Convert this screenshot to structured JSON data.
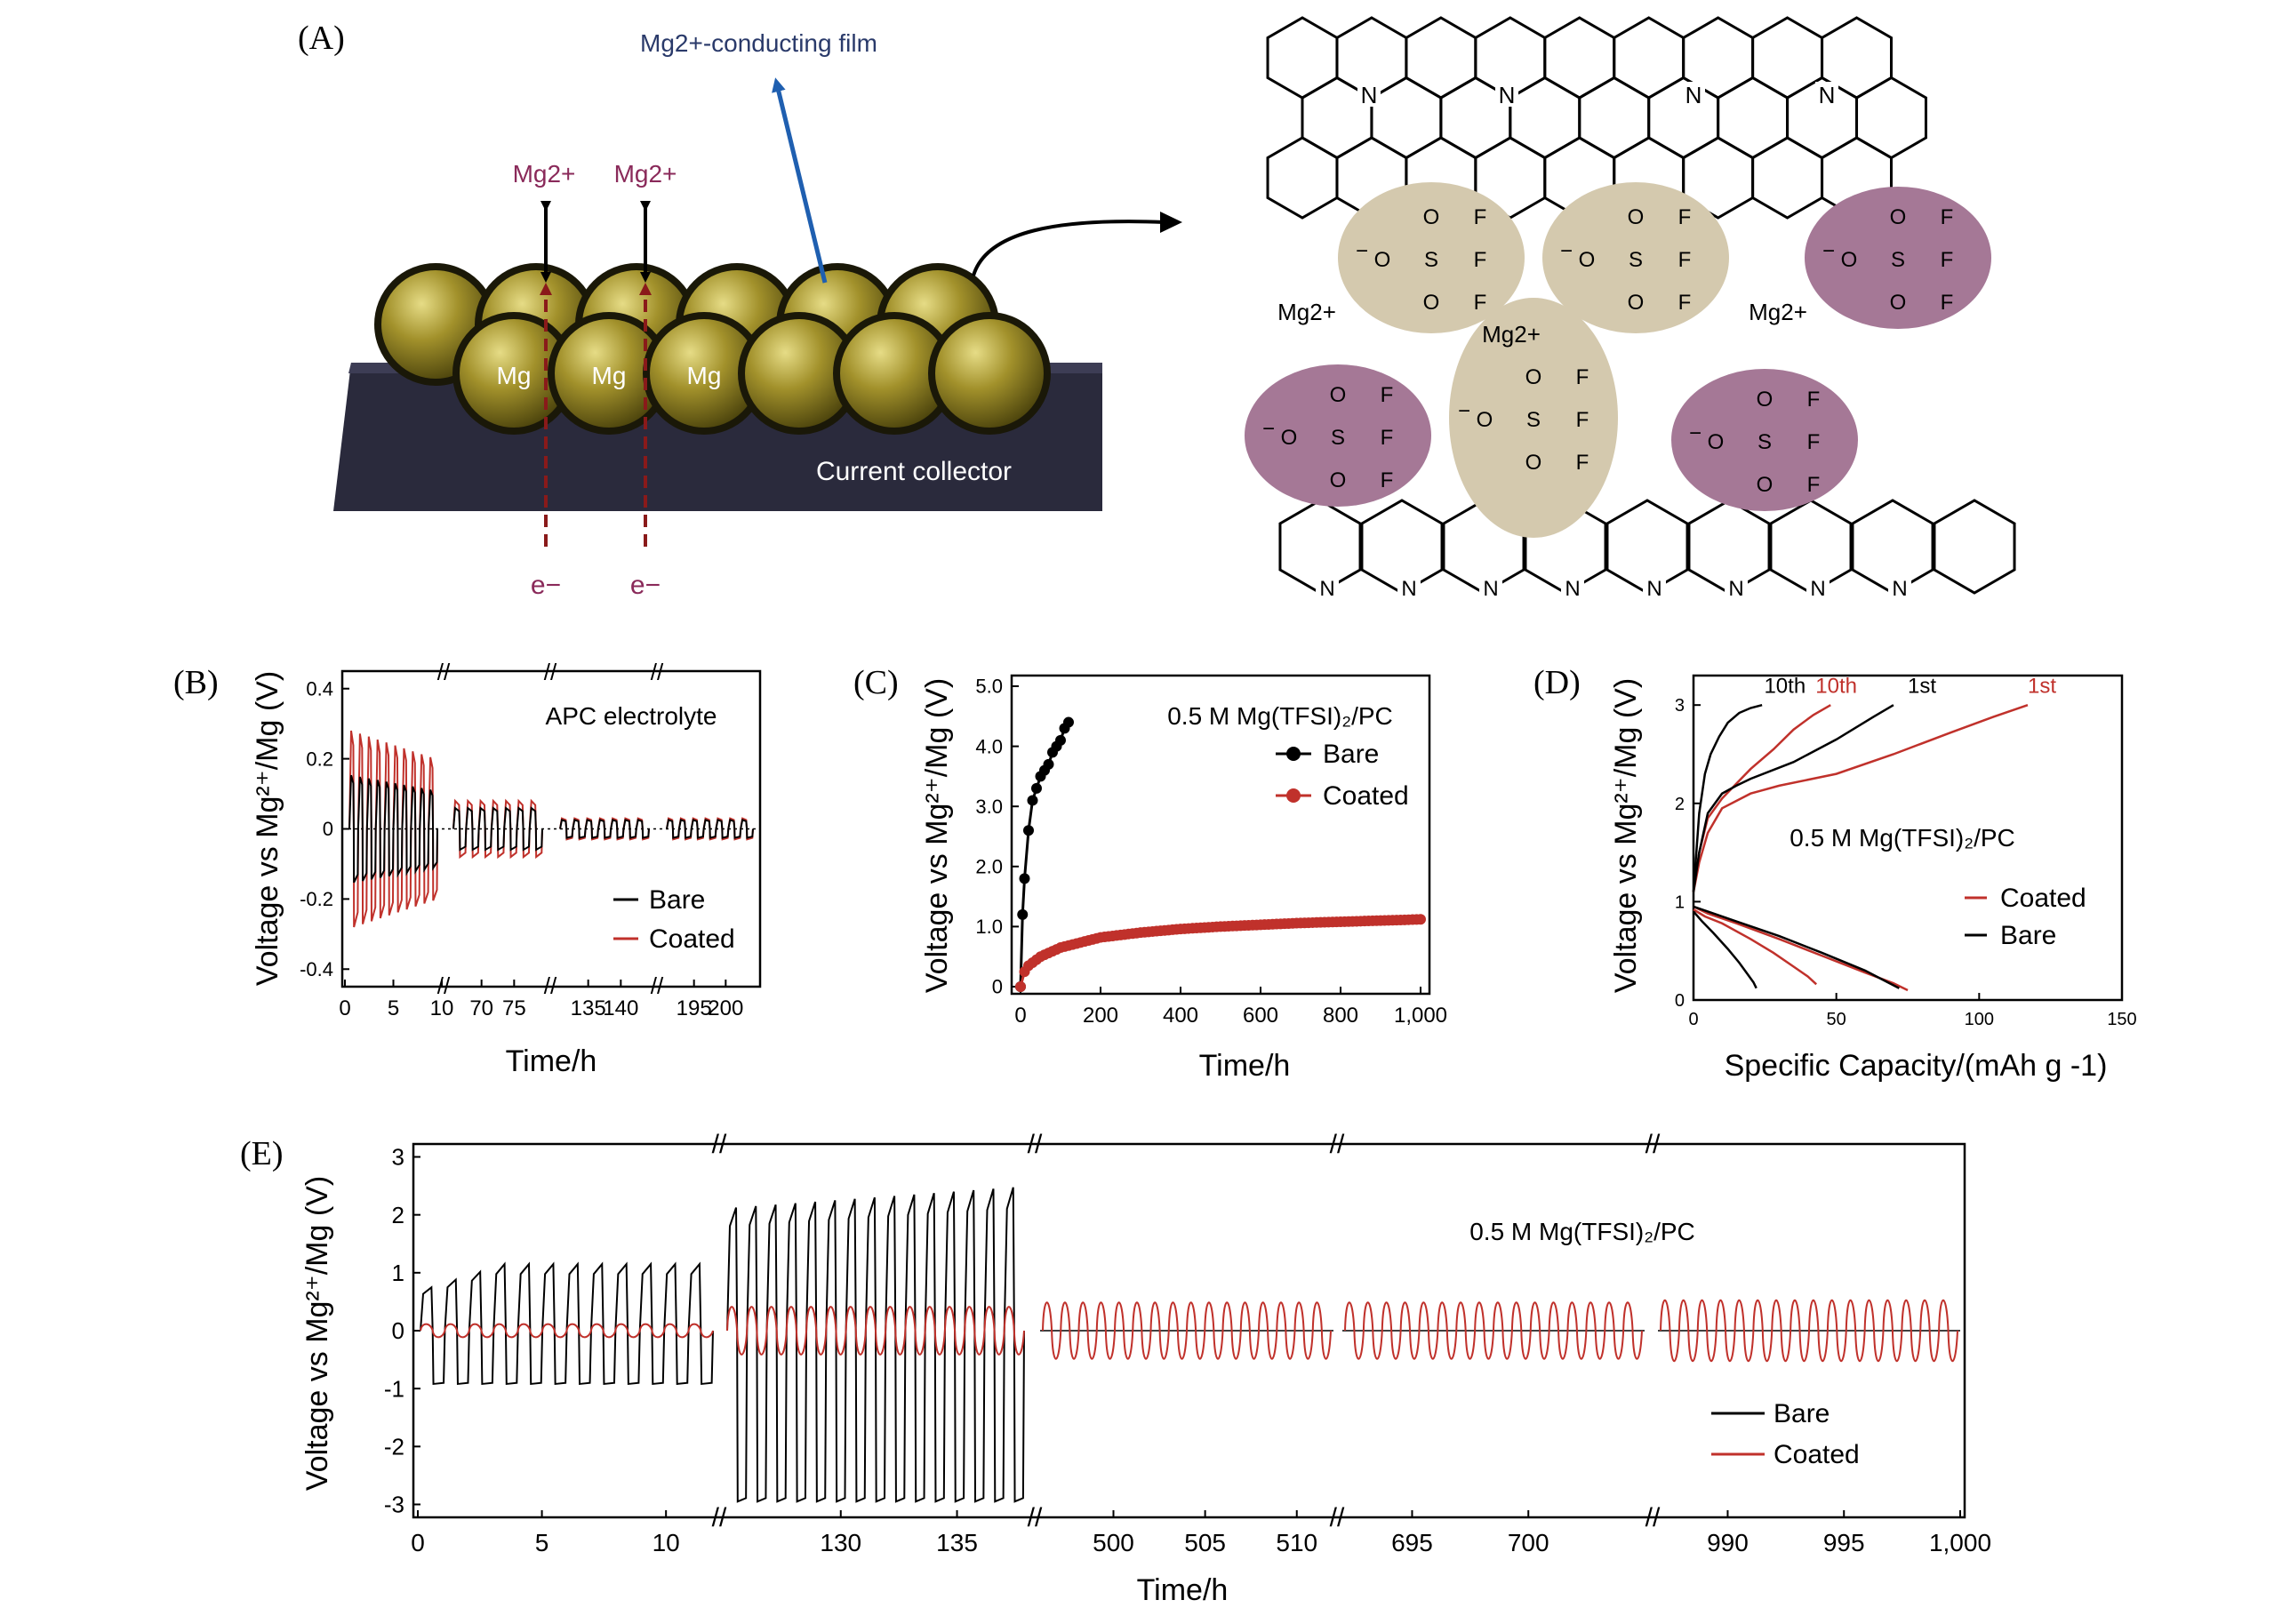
{
  "figure": {
    "panel_labels": [
      "(A)",
      "(B)",
      "(C)",
      "(D)",
      "(E)"
    ]
  },
  "schematic": {
    "film_label": "Mg2+-conducting film",
    "ion_label": "Mg2+",
    "electron_label": "e−",
    "mg_label": "Mg",
    "collector_label": "Current collector",
    "colors": {
      "sphere": "#8a7a1e",
      "collector": "#2a2a3c",
      "film_arrow": "#1f5fb0",
      "ion_text": "#8a2a5a",
      "electron_arrow": "#8a1a1a"
    }
  },
  "structure": {
    "n_label": "N",
    "mg_label": "Mg2+",
    "f_label": "F",
    "o_label": "O",
    "s_label": "S",
    "charge_label": "−",
    "colors": {
      "beige": "#d4c9ae",
      "purple": "#a57896"
    }
  },
  "colors": {
    "bare": "#000000",
    "coated": "#c0312b"
  },
  "chart_data": [
    {
      "id": "B",
      "type": "line",
      "title": "APC electrolyte",
      "xlabel": "Time/h",
      "ylabel": "Voltage vs Mg²⁺/Mg (V)",
      "ylim": [
        -0.45,
        0.45
      ],
      "yticks": [
        "0.4",
        "0.2",
        "0",
        "-0.2",
        "-0.4"
      ],
      "segments": [
        {
          "range": [
            0,
            10
          ],
          "ticks": [
            "0",
            "5",
            "10"
          ],
          "bare_amp": 0.18,
          "coated_amp": 0.28
        },
        {
          "range": [
            65,
            80
          ],
          "ticks": [
            "70",
            "75"
          ],
          "bare_amp": 0.07,
          "coated_amp": 0.08
        },
        {
          "range": [
            130,
            145
          ],
          "ticks": [
            "135",
            "140"
          ],
          "bare_amp": 0.03,
          "coated_amp": 0.03
        },
        {
          "range": [
            190,
            205
          ],
          "ticks": [
            "195",
            "200"
          ],
          "bare_amp": 0.03,
          "coated_amp": 0.03
        }
      ],
      "legend": [
        "Bare",
        "Coated"
      ]
    },
    {
      "id": "C",
      "type": "line",
      "title": "0.5 M Mg(TFSI)₂/PC",
      "xlabel": "Time/h",
      "ylabel": "Voltage vs Mg²⁺/Mg (V)",
      "xlim": [
        0,
        1000
      ],
      "ylim": [
        0,
        5.0
      ],
      "xticks": [
        "0",
        "200",
        "400",
        "600",
        "800",
        "1,000"
      ],
      "yticks": [
        "0",
        "1.0",
        "2.0",
        "3.0",
        "4.0",
        "5.0"
      ],
      "series": [
        {
          "name": "Bare",
          "x": [
            0,
            5,
            10,
            20,
            30,
            40,
            50,
            60,
            70,
            80,
            90,
            100,
            110,
            120
          ],
          "y": [
            0.0,
            1.2,
            1.8,
            2.6,
            3.1,
            3.3,
            3.5,
            3.6,
            3.7,
            3.9,
            4.0,
            4.1,
            4.3,
            4.4
          ]
        },
        {
          "name": "Coated",
          "x": [
            0,
            10,
            20,
            50,
            100,
            200,
            300,
            400,
            500,
            600,
            700,
            800,
            900,
            1000
          ],
          "y": [
            0.0,
            0.25,
            0.35,
            0.5,
            0.65,
            0.82,
            0.9,
            0.96,
            1.0,
            1.03,
            1.06,
            1.08,
            1.1,
            1.12
          ]
        }
      ],
      "legend": [
        "Bare",
        "Coated"
      ]
    },
    {
      "id": "D",
      "type": "line",
      "xlabel": "Specific Capacity/(mAh g -1)",
      "ylabel": "Voltage vs Mg²⁺/Mg (V)",
      "annotation": "0.5 M Mg(TFSI)₂/PC",
      "xlim": [
        0,
        150
      ],
      "ylim": [
        0,
        3.3
      ],
      "xticks": [
        "0",
        "50",
        "100",
        "150"
      ],
      "yticks": [
        "0",
        "1",
        "2",
        "3"
      ],
      "series": [
        {
          "name": "Coated 1st",
          "color": "coated",
          "x": [
            0,
            2,
            5,
            10,
            20,
            30,
            50,
            70,
            90,
            105,
            117
          ],
          "y": [
            1.1,
            1.4,
            1.7,
            1.95,
            2.1,
            2.18,
            2.3,
            2.5,
            2.72,
            2.88,
            3.0
          ]
        },
        {
          "name": "Coated 10th",
          "color": "coated",
          "x": [
            0,
            2,
            5,
            10,
            15,
            20,
            28,
            35,
            42,
            48
          ],
          "y": [
            1.1,
            1.5,
            1.85,
            2.05,
            2.2,
            2.35,
            2.55,
            2.75,
            2.9,
            3.0
          ]
        },
        {
          "name": "Bare 1st",
          "color": "bare",
          "x": [
            0,
            2,
            5,
            10,
            15,
            20,
            35,
            50,
            63,
            70
          ],
          "y": [
            1.1,
            1.5,
            1.9,
            2.1,
            2.18,
            2.25,
            2.42,
            2.65,
            2.88,
            3.0
          ]
        },
        {
          "name": "Bare 10th",
          "color": "bare",
          "x": [
            0,
            1,
            2,
            4,
            6,
            9,
            12,
            16,
            20,
            24
          ],
          "y": [
            1.1,
            1.5,
            1.9,
            2.3,
            2.5,
            2.68,
            2.82,
            2.92,
            2.97,
            3.0
          ]
        },
        {
          "name": "Coated 1st discharge",
          "color": "coated",
          "x": [
            0,
            5,
            15,
            30,
            45,
            60,
            70,
            75
          ],
          "y": [
            0.95,
            0.88,
            0.78,
            0.62,
            0.45,
            0.28,
            0.17,
            0.1
          ]
        },
        {
          "name": "Bare 1st discharge",
          "color": "bare",
          "x": [
            0,
            5,
            15,
            30,
            45,
            60,
            68,
            72
          ],
          "y": [
            0.95,
            0.9,
            0.8,
            0.65,
            0.48,
            0.3,
            0.18,
            0.12
          ]
        },
        {
          "name": "Coated 10th discharge",
          "color": "coated",
          "x": [
            0,
            4,
            10,
            20,
            28,
            35,
            40,
            43
          ],
          "y": [
            0.92,
            0.85,
            0.78,
            0.62,
            0.48,
            0.34,
            0.24,
            0.16
          ]
        },
        {
          "name": "Bare 10th discharge",
          "color": "bare",
          "x": [
            0,
            3,
            7,
            12,
            16,
            19,
            21,
            22
          ],
          "y": [
            0.9,
            0.8,
            0.68,
            0.52,
            0.38,
            0.26,
            0.18,
            0.12
          ]
        }
      ],
      "curve_labels": [
        {
          "text": "10th",
          "color": "bare",
          "x": 32,
          "y": 3.07
        },
        {
          "text": "10th",
          "color": "coated",
          "x": 50,
          "y": 3.07
        },
        {
          "text": "1st",
          "color": "bare",
          "x": 80,
          "y": 3.07
        },
        {
          "text": "1st",
          "color": "coated",
          "x": 122,
          "y": 3.07
        }
      ],
      "legend": [
        "Coated",
        "Bare"
      ]
    },
    {
      "id": "E",
      "type": "line",
      "title": "0.5 M Mg(TFSI)₂/PC",
      "xlabel": "Time/h",
      "ylabel": "Voltage vs Mg²⁺/Mg (V)",
      "ylim": [
        -3.1,
        3.1
      ],
      "yticks": [
        "3",
        "2",
        "1",
        "0",
        "-1",
        "-2",
        "-3"
      ],
      "segments": [
        {
          "range": [
            0,
            12
          ],
          "ticks": [
            "0",
            "5",
            "10"
          ],
          "bare_amp": 1.15,
          "coated_amp": 0.15,
          "cycles": 12
        },
        {
          "range": [
            125,
            138
          ],
          "ticks": [
            "130",
            "135"
          ],
          "bare_amp": 2.5,
          "coated_amp": 0.55,
          "cycles": 15
        },
        {
          "range": [
            496,
            512
          ],
          "ticks": [
            "500",
            "505",
            "510"
          ],
          "bare_amp": null,
          "coated_amp": 0.65,
          "cycles": 16
        },
        {
          "range": [
            692,
            705
          ],
          "ticks": [
            "695",
            "700"
          ],
          "bare_amp": null,
          "coated_amp": 0.65,
          "cycles": 16
        },
        {
          "range": [
            987,
            1000
          ],
          "ticks": [
            "990",
            "995",
            "1,000"
          ],
          "bare_amp": null,
          "coated_amp": 0.7,
          "cycles": 16
        }
      ],
      "legend": [
        "Bare",
        "Coated"
      ]
    }
  ]
}
